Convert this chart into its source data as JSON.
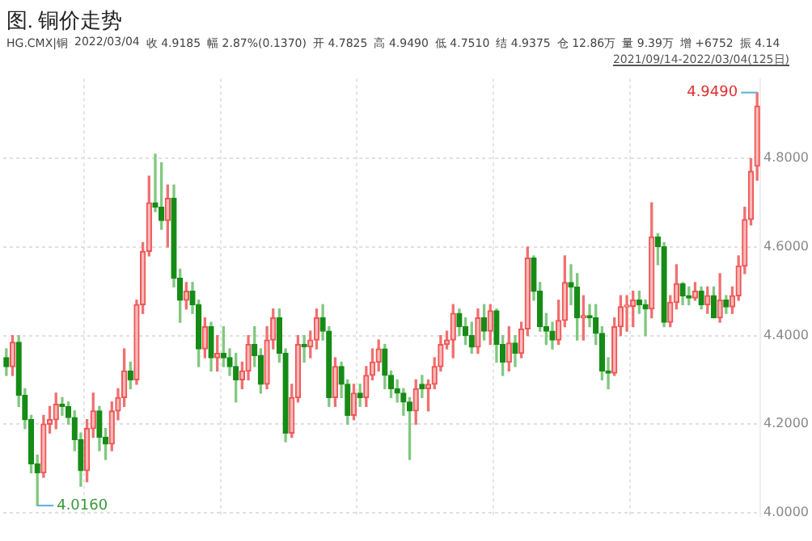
{
  "chart_data": {
    "type": "candlestick",
    "title": "图. 铜价走势",
    "annotations": [
      "HG.CMX|铜",
      "2022/03/04",
      "收 4.9185",
      "幅 2.87%(0.1370)",
      "开 4.7825",
      "高 4.9490",
      "低 4.7510",
      "结 4.9375",
      "仓 12.86万",
      "量 9.39万",
      "增 +6752",
      "振 4.14",
      "2021/09/14-2022/03/04(125日)",
      "4.9490",
      "4.0160"
    ],
    "categories": [
      null,
      null,
      null,
      null,
      null,
      null,
      null,
      null,
      null,
      null,
      null,
      null,
      null,
      null,
      null,
      null,
      null,
      null,
      null,
      null,
      null,
      null,
      null,
      null,
      null,
      null,
      null,
      null,
      null,
      null,
      null,
      null,
      null,
      null,
      null,
      null,
      null,
      null,
      null,
      null,
      null,
      null,
      null,
      null,
      null,
      null,
      null,
      null,
      null,
      null,
      null,
      null,
      null,
      null,
      null,
      null,
      null,
      null,
      null,
      null,
      null,
      null,
      null,
      null,
      null,
      null,
      null,
      null,
      null,
      null,
      null,
      null,
      null,
      null,
      null,
      null,
      null,
      null,
      null,
      null,
      null,
      null,
      null,
      null,
      null,
      null,
      null,
      null,
      null,
      null,
      null,
      null,
      null,
      null,
      null,
      null,
      null,
      null,
      null,
      null,
      null,
      null,
      null,
      null,
      null,
      null,
      null,
      null,
      null,
      null,
      null,
      null,
      null,
      null,
      null,
      null,
      null,
      null,
      null,
      null,
      null,
      null
    ],
    "ohlc": [
      [
        4.35,
        4.37,
        4.31,
        4.33
      ],
      [
        4.33,
        4.4,
        4.31,
        4.385
      ],
      [
        4.385,
        4.4,
        4.24,
        4.265
      ],
      [
        4.265,
        4.28,
        4.19,
        4.21
      ],
      [
        4.21,
        4.22,
        4.09,
        4.11
      ],
      [
        4.11,
        4.13,
        4.016,
        4.09
      ],
      [
        4.09,
        4.22,
        4.08,
        4.2
      ],
      [
        4.2,
        4.24,
        4.18,
        4.21
      ],
      [
        4.21,
        4.27,
        4.19,
        4.245
      ],
      [
        4.245,
        4.26,
        4.22,
        4.24
      ],
      [
        4.24,
        4.25,
        4.2,
        4.215
      ],
      [
        4.215,
        4.23,
        4.14,
        4.165
      ],
      [
        4.165,
        4.18,
        4.06,
        4.095
      ],
      [
        4.095,
        4.21,
        4.07,
        4.19
      ],
      [
        4.19,
        4.27,
        4.17,
        4.23
      ],
      [
        4.23,
        4.24,
        4.14,
        4.17
      ],
      [
        4.17,
        4.19,
        4.12,
        4.155
      ],
      [
        4.155,
        4.25,
        4.14,
        4.23
      ],
      [
        4.23,
        4.28,
        4.21,
        4.26
      ],
      [
        4.26,
        4.37,
        4.24,
        4.32
      ],
      [
        4.32,
        4.34,
        4.28,
        4.3
      ],
      [
        4.3,
        4.48,
        4.29,
        4.47
      ],
      [
        4.47,
        4.61,
        4.45,
        4.59
      ],
      [
        4.59,
        4.76,
        4.58,
        4.7
      ],
      [
        4.7,
        4.81,
        4.68,
        4.69
      ],
      [
        4.69,
        4.79,
        4.64,
        4.66
      ],
      [
        4.66,
        4.74,
        4.6,
        4.71
      ],
      [
        4.71,
        4.74,
        4.51,
        4.53
      ],
      [
        4.53,
        4.55,
        4.43,
        4.48
      ],
      [
        4.48,
        4.52,
        4.46,
        4.5
      ],
      [
        4.5,
        4.52,
        4.45,
        4.47
      ],
      [
        4.47,
        4.48,
        4.33,
        4.37
      ],
      [
        4.37,
        4.44,
        4.35,
        4.42
      ],
      [
        4.42,
        4.43,
        4.32,
        4.35
      ],
      [
        4.35,
        4.4,
        4.32,
        4.36
      ],
      [
        4.36,
        4.42,
        4.33,
        4.35
      ],
      [
        4.35,
        4.37,
        4.31,
        4.33
      ],
      [
        4.33,
        4.36,
        4.25,
        4.3
      ],
      [
        4.3,
        4.34,
        4.28,
        4.32
      ],
      [
        4.32,
        4.4,
        4.3,
        4.38
      ],
      [
        4.38,
        4.42,
        4.33,
        4.355
      ],
      [
        4.355,
        4.37,
        4.27,
        4.29
      ],
      [
        4.29,
        4.42,
        4.28,
        4.39
      ],
      [
        4.39,
        4.46,
        4.37,
        4.44
      ],
      [
        4.44,
        4.46,
        4.34,
        4.36
      ],
      [
        4.36,
        4.37,
        4.16,
        4.18
      ],
      [
        4.18,
        4.29,
        4.17,
        4.26
      ],
      [
        4.26,
        4.4,
        4.25,
        4.38
      ],
      [
        4.38,
        4.4,
        4.34,
        4.375
      ],
      [
        4.375,
        4.41,
        4.35,
        4.39
      ],
      [
        4.39,
        4.46,
        4.37,
        4.44
      ],
      [
        4.44,
        4.47,
        4.39,
        4.41
      ],
      [
        4.41,
        4.42,
        4.24,
        4.26
      ],
      [
        4.26,
        4.35,
        4.24,
        4.33
      ],
      [
        4.33,
        4.34,
        4.26,
        4.29
      ],
      [
        4.29,
        4.3,
        4.2,
        4.22
      ],
      [
        4.22,
        4.29,
        4.21,
        4.27
      ],
      [
        4.27,
        4.29,
        4.24,
        4.26
      ],
      [
        4.26,
        4.33,
        4.24,
        4.31
      ],
      [
        4.31,
        4.37,
        4.3,
        4.34
      ],
      [
        4.34,
        4.39,
        4.32,
        4.37
      ],
      [
        4.37,
        4.38,
        4.28,
        4.31
      ],
      [
        4.31,
        4.32,
        4.26,
        4.28
      ],
      [
        4.28,
        4.3,
        4.25,
        4.27
      ],
      [
        4.27,
        4.28,
        4.22,
        4.25
      ],
      [
        4.25,
        4.26,
        4.12,
        4.23
      ],
      [
        4.23,
        4.3,
        4.2,
        4.28
      ],
      [
        4.29,
        4.31,
        4.26,
        4.28
      ],
      [
        4.28,
        4.3,
        4.23,
        4.29
      ],
      [
        4.29,
        4.35,
        4.28,
        4.33
      ],
      [
        4.33,
        4.4,
        4.32,
        4.38
      ],
      [
        4.38,
        4.41,
        4.37,
        4.39
      ],
      [
        4.39,
        4.47,
        4.35,
        4.45
      ],
      [
        4.45,
        4.46,
        4.4,
        4.42
      ],
      [
        4.42,
        4.44,
        4.38,
        4.4
      ],
      [
        4.4,
        4.43,
        4.36,
        4.374
      ],
      [
        4.374,
        4.46,
        4.36,
        4.44
      ],
      [
        4.44,
        4.47,
        4.39,
        4.41
      ],
      [
        4.41,
        4.47,
        4.38,
        4.456
      ],
      [
        4.456,
        4.46,
        4.34,
        4.38
      ],
      [
        4.38,
        4.4,
        4.31,
        4.34
      ],
      [
        4.34,
        4.42,
        4.32,
        4.383
      ],
      [
        4.383,
        4.4,
        4.33,
        4.36
      ],
      [
        4.36,
        4.43,
        4.35,
        4.415
      ],
      [
        4.415,
        4.6,
        4.4,
        4.575
      ],
      [
        4.575,
        4.58,
        4.48,
        4.5
      ],
      [
        4.5,
        4.52,
        4.41,
        4.42
      ],
      [
        4.42,
        4.45,
        4.38,
        4.41
      ],
      [
        4.41,
        4.43,
        4.37,
        4.39
      ],
      [
        4.39,
        4.48,
        4.38,
        4.434
      ],
      [
        4.434,
        4.58,
        4.42,
        4.52
      ],
      [
        4.52,
        4.56,
        4.47,
        4.51
      ],
      [
        4.51,
        4.54,
        4.39,
        4.44
      ],
      [
        4.44,
        4.49,
        4.39,
        4.445
      ],
      [
        4.445,
        4.47,
        4.42,
        4.44
      ],
      [
        4.44,
        4.47,
        4.38,
        4.405
      ],
      [
        4.405,
        4.42,
        4.3,
        4.32
      ],
      [
        4.32,
        4.35,
        4.28,
        4.315
      ],
      [
        4.315,
        4.44,
        4.31,
        4.42
      ],
      [
        4.42,
        4.49,
        4.4,
        4.465
      ],
      [
        4.465,
        4.49,
        4.41,
        4.466
      ],
      [
        4.466,
        4.5,
        4.42,
        4.48
      ],
      [
        4.48,
        4.5,
        4.45,
        4.47
      ],
      [
        4.47,
        4.48,
        4.4,
        4.46
      ],
      [
        4.46,
        4.7,
        4.44,
        4.623
      ],
      [
        4.623,
        4.63,
        4.56,
        4.601
      ],
      [
        4.601,
        4.61,
        4.42,
        4.43
      ],
      [
        4.43,
        4.49,
        4.42,
        4.475
      ],
      [
        4.475,
        4.56,
        4.46,
        4.517
      ],
      [
        4.517,
        4.52,
        4.47,
        4.49
      ],
      [
        4.49,
        4.51,
        4.47,
        4.485
      ],
      [
        4.485,
        4.52,
        4.48,
        4.5
      ],
      [
        4.5,
        4.51,
        4.46,
        4.47
      ],
      [
        4.47,
        4.51,
        4.45,
        4.49
      ],
      [
        4.49,
        4.51,
        4.44,
        4.44
      ],
      [
        4.44,
        4.54,
        4.43,
        4.48
      ],
      [
        4.48,
        4.49,
        4.45,
        4.465
      ],
      [
        4.465,
        4.51,
        4.45,
        4.49
      ],
      [
        4.49,
        4.58,
        4.48,
        4.557
      ],
      [
        4.557,
        4.69,
        4.54,
        4.662
      ],
      [
        4.662,
        4.8,
        4.65,
        4.771
      ],
      [
        4.7825,
        4.949,
        4.751,
        4.9185
      ]
    ],
    "ylim": [
      3.99,
      4.98
    ],
    "yticks": [
      {
        "value": 4.0,
        "label": "4.0000"
      },
      {
        "value": 4.2,
        "label": "4.2000"
      },
      {
        "value": 4.4,
        "label": "4.4000"
      },
      {
        "value": 4.6,
        "label": "4.6000"
      },
      {
        "value": 4.8,
        "label": "4.8000"
      }
    ],
    "grid": true,
    "legend": false
  }
}
